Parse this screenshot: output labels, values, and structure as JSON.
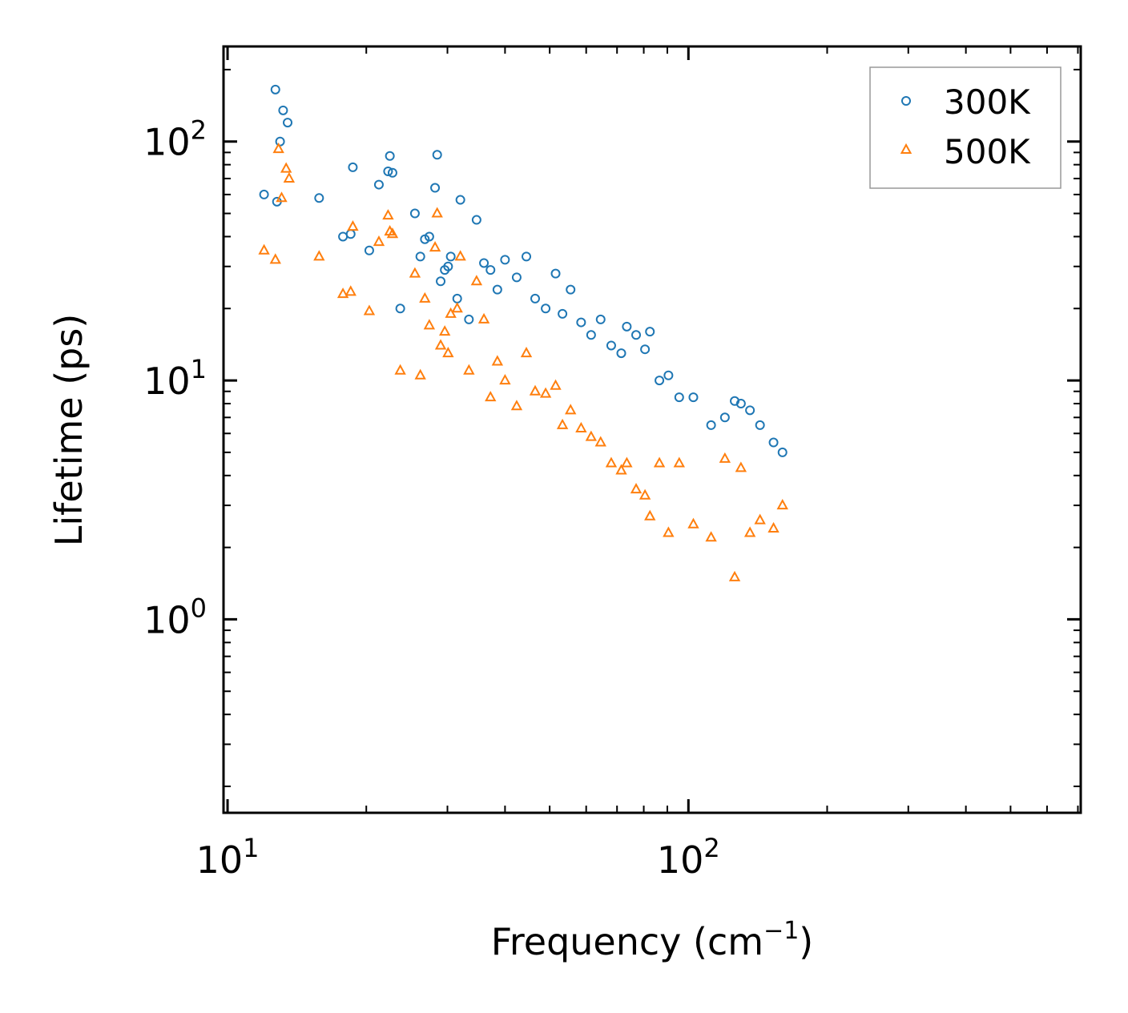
{
  "chart_data": {
    "type": "scatter",
    "title": "",
    "xlabel": "Frequency (cm",
    "xlabel_sup": "−1",
    "xlabel_close": ")",
    "ylabel": "Lifetime (ps)",
    "xscale": "log",
    "yscale": "log",
    "xlim": [
      9.8,
      710
    ],
    "ylim": [
      0.155,
      250
    ],
    "x_ticks": [
      {
        "base": "10",
        "exp": "1",
        "value": 10
      },
      {
        "base": "10",
        "exp": "2",
        "value": 100
      }
    ],
    "y_ticks": [
      {
        "base": "10",
        "exp": "0",
        "value": 1
      },
      {
        "base": "10",
        "exp": "1",
        "value": 10
      },
      {
        "base": "10",
        "exp": "2",
        "value": 100
      }
    ],
    "legend_position": "top-right",
    "series": [
      {
        "name": "300K",
        "marker": "circle",
        "color": "#1f77b4",
        "points": [
          [
            12.0,
            60
          ],
          [
            12.7,
            165
          ],
          [
            13.0,
            100
          ],
          [
            13.2,
            135
          ],
          [
            13.5,
            120
          ],
          [
            12.8,
            56
          ],
          [
            15.8,
            58
          ],
          [
            17.8,
            40
          ],
          [
            18.5,
            41
          ],
          [
            18.7,
            78
          ],
          [
            20.3,
            35
          ],
          [
            21.3,
            66
          ],
          [
            22.3,
            75
          ],
          [
            22.5,
            87
          ],
          [
            22.8,
            74
          ],
          [
            23.7,
            20
          ],
          [
            25.5,
            50
          ],
          [
            26.2,
            33
          ],
          [
            26.8,
            39
          ],
          [
            27.4,
            40
          ],
          [
            28.2,
            64
          ],
          [
            28.5,
            88
          ],
          [
            29.0,
            26
          ],
          [
            29.6,
            29
          ],
          [
            30.1,
            30
          ],
          [
            30.5,
            33
          ],
          [
            31.5,
            22
          ],
          [
            32.0,
            57
          ],
          [
            33.4,
            18
          ],
          [
            34.7,
            47
          ],
          [
            36.0,
            31
          ],
          [
            37.2,
            29
          ],
          [
            38.5,
            24
          ],
          [
            40.0,
            32
          ],
          [
            42.4,
            27
          ],
          [
            44.5,
            33
          ],
          [
            46.5,
            22
          ],
          [
            49.0,
            20
          ],
          [
            51.5,
            28
          ],
          [
            53.3,
            19
          ],
          [
            55.5,
            24
          ],
          [
            58.5,
            17.5
          ],
          [
            61.5,
            15.5
          ],
          [
            64.5,
            18
          ],
          [
            68.0,
            14
          ],
          [
            71.5,
            13
          ],
          [
            73.5,
            16.8
          ],
          [
            77.0,
            15.5
          ],
          [
            80.5,
            13.5
          ],
          [
            82.5,
            16
          ],
          [
            86.5,
            10
          ],
          [
            90.5,
            10.5
          ],
          [
            95.5,
            8.5
          ],
          [
            102.5,
            8.5
          ],
          [
            112,
            6.5
          ],
          [
            120,
            7
          ],
          [
            126,
            8.2
          ],
          [
            130,
            8
          ],
          [
            136,
            7.5
          ],
          [
            143,
            6.5
          ],
          [
            153,
            5.5
          ],
          [
            160,
            5
          ]
        ]
      },
      {
        "name": "500K",
        "marker": "triangle",
        "color": "#ff7f0e",
        "points": [
          [
            12.0,
            35
          ],
          [
            12.7,
            32
          ],
          [
            12.9,
            93
          ],
          [
            13.1,
            58
          ],
          [
            13.4,
            77
          ],
          [
            13.6,
            70
          ],
          [
            15.8,
            33
          ],
          [
            17.8,
            23
          ],
          [
            18.5,
            23.5
          ],
          [
            18.7,
            44
          ],
          [
            20.3,
            19.5
          ],
          [
            21.3,
            38
          ],
          [
            22.3,
            49
          ],
          [
            22.5,
            42
          ],
          [
            22.8,
            41
          ],
          [
            23.7,
            11
          ],
          [
            25.5,
            28
          ],
          [
            26.2,
            10.5
          ],
          [
            26.8,
            22
          ],
          [
            27.4,
            17
          ],
          [
            28.2,
            36
          ],
          [
            28.5,
            50
          ],
          [
            29.0,
            14
          ],
          [
            29.6,
            16
          ],
          [
            30.1,
            13
          ],
          [
            30.5,
            19
          ],
          [
            31.5,
            20
          ],
          [
            32.0,
            33
          ],
          [
            33.4,
            11
          ],
          [
            34.7,
            26
          ],
          [
            36.0,
            18
          ],
          [
            37.2,
            8.5
          ],
          [
            38.5,
            12
          ],
          [
            40.0,
            10
          ],
          [
            42.4,
            7.8
          ],
          [
            44.5,
            13
          ],
          [
            46.5,
            9
          ],
          [
            49.0,
            8.8
          ],
          [
            51.5,
            9.5
          ],
          [
            53.3,
            6.5
          ],
          [
            55.5,
            7.5
          ],
          [
            58.5,
            6.3
          ],
          [
            61.5,
            5.8
          ],
          [
            64.5,
            5.5
          ],
          [
            68.0,
            4.5
          ],
          [
            71.5,
            4.2
          ],
          [
            73.5,
            4.5
          ],
          [
            77.0,
            3.5
          ],
          [
            80.5,
            3.3
          ],
          [
            82.5,
            2.7
          ],
          [
            86.5,
            4.5
          ],
          [
            90.5,
            2.3
          ],
          [
            95.5,
            4.5
          ],
          [
            102.5,
            2.5
          ],
          [
            112,
            2.2
          ],
          [
            120,
            4.7
          ],
          [
            126,
            1.5
          ],
          [
            130,
            4.3
          ],
          [
            136,
            2.3
          ],
          [
            143,
            2.6
          ],
          [
            153,
            2.4
          ],
          [
            160,
            3
          ]
        ]
      }
    ]
  }
}
